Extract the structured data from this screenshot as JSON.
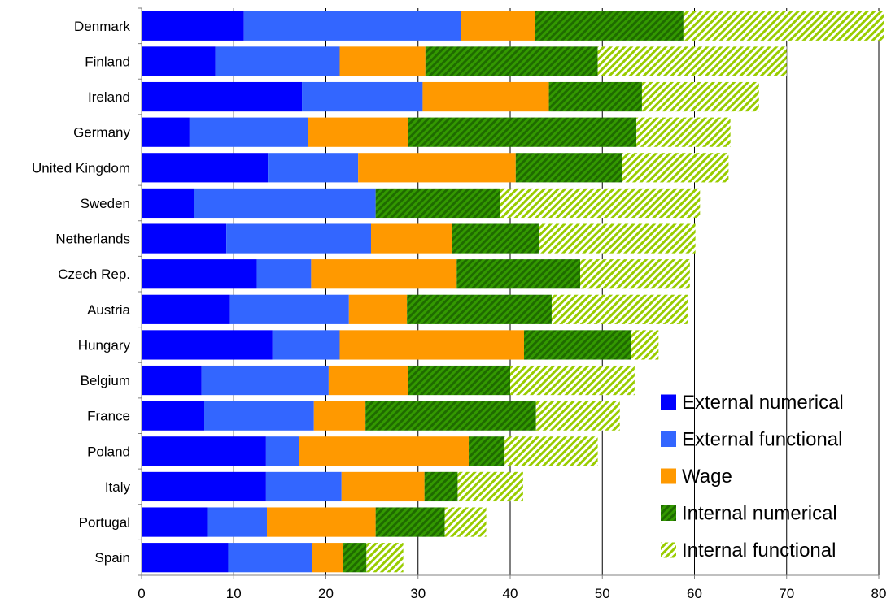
{
  "chart_data": {
    "type": "bar",
    "orientation": "horizontal",
    "stacked": true,
    "categories": [
      "Denmark",
      "Finland",
      "Ireland",
      "Germany",
      "United Kingdom",
      "Sweden",
      "Netherlands",
      "Czech Rep.",
      "Austria",
      "Hungary",
      "Belgium",
      "France",
      "Poland",
      "Italy",
      "Portugal",
      "Spain"
    ],
    "series": [
      {
        "name": "External numerical",
        "color": "#0000ff",
        "pattern": "solid",
        "values": [
          11.1,
          8.0,
          17.4,
          5.2,
          13.7,
          5.7,
          9.2,
          12.5,
          9.6,
          14.2,
          6.5,
          6.8,
          13.5,
          13.5,
          7.2,
          9.4
        ]
      },
      {
        "name": "External functional",
        "color": "#3366ff",
        "pattern": "solid",
        "values": [
          23.6,
          13.5,
          13.1,
          12.9,
          9.8,
          19.7,
          15.7,
          5.9,
          12.9,
          7.3,
          13.8,
          11.9,
          3.6,
          8.2,
          6.4,
          9.1
        ]
      },
      {
        "name": "Wage",
        "color": "#ff9900",
        "pattern": "solid",
        "values": [
          8.0,
          9.3,
          13.7,
          10.8,
          17.1,
          0.0,
          8.8,
          15.8,
          6.3,
          20.0,
          8.6,
          5.6,
          18.4,
          9.0,
          11.8,
          3.4
        ]
      },
      {
        "name": "Internal numerical",
        "color": "#339900",
        "pattern": "hatch-dark",
        "values": [
          16.1,
          18.7,
          10.1,
          24.8,
          11.5,
          13.5,
          9.4,
          13.4,
          15.7,
          11.6,
          11.1,
          18.5,
          3.9,
          3.6,
          7.5,
          2.5
        ]
      },
      {
        "name": "Internal functional",
        "color": "#99cc00",
        "pattern": "hatch-light",
        "values": [
          21.8,
          20.5,
          12.7,
          10.2,
          11.6,
          21.7,
          17.0,
          11.9,
          14.8,
          3.0,
          13.5,
          9.1,
          10.1,
          7.1,
          4.5,
          4.0
        ]
      }
    ],
    "title": "",
    "xlabel": "",
    "ylabel": "",
    "xlim": [
      0,
      80
    ],
    "xticks": [
      0,
      10,
      20,
      30,
      40,
      50,
      60,
      70,
      80
    ],
    "grid": "vertical",
    "legend": "bottom-right"
  }
}
